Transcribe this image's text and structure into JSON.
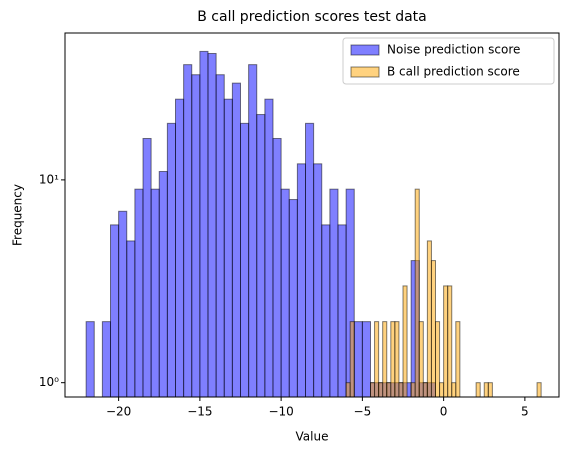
{
  "chart_data": {
    "type": "histogram",
    "title": "B call prediction scores test data",
    "x_label": "Value",
    "y_label": "Frequency",
    "xlim": [
      -23.3,
      7.1
    ],
    "xticks": [
      -20,
      -15,
      -10,
      -5,
      0,
      5
    ],
    "ylim": [
      0.85,
      53
    ],
    "log_y": true,
    "yticks": [
      {
        "value": 1,
        "label": "10⁰"
      },
      {
        "value": 10,
        "label": "10¹"
      }
    ],
    "legend": "upper right",
    "series": [
      {
        "name": "Noise prediction score",
        "color": "#0000ff",
        "bins": [
          -22,
          -21.5,
          -21,
          -20.5,
          -20,
          -19.5,
          -19,
          -18.5,
          -18,
          -17.5,
          -17,
          -16.5,
          -16,
          -15.5,
          -15,
          -14.5,
          -14,
          -13.5,
          -13,
          -12.5,
          -12,
          -11.5,
          -11,
          -10.5,
          -10,
          -9.5,
          -9,
          -8.5,
          -8,
          -7.5,
          -7,
          -6.5,
          -6,
          -5.5,
          -5,
          -4.5,
          -4,
          -3.5,
          -3,
          -2.5,
          -2,
          -1.5,
          -1,
          -0.5,
          0,
          0.5,
          1,
          1.5
        ],
        "values": [
          2,
          0,
          2,
          6,
          7,
          5,
          9,
          16,
          9,
          11,
          19,
          25,
          37,
          33,
          43,
          42,
          33,
          25,
          30,
          19,
          37,
          21,
          25,
          16,
          9,
          8,
          12,
          19,
          12,
          6,
          9,
          6,
          9,
          2,
          2,
          1,
          1,
          1,
          1,
          1,
          4,
          1,
          1,
          0,
          0,
          0,
          0
        ]
      },
      {
        "name": "B call prediction score",
        "color": "#ffa500",
        "bins": [
          -6,
          -5.75,
          -5.5,
          -5.25,
          -5,
          -4.75,
          -4.5,
          -4.25,
          -4,
          -3.75,
          -3.5,
          -3.25,
          -3,
          -2.75,
          -2.5,
          -2.25,
          -2,
          -1.75,
          -1.5,
          -1.25,
          -1,
          -0.75,
          -0.5,
          -0.25,
          0,
          0.25,
          0.5,
          0.75,
          1,
          1.25,
          1.5,
          1.75,
          2,
          2.25,
          2.5,
          2.75,
          3,
          3.25,
          3.5,
          3.75,
          4,
          4.25,
          4.5,
          4.75,
          5,
          5.25,
          5.5,
          5.75,
          6
        ],
        "values": [
          1,
          2,
          0,
          0,
          0,
          0,
          1,
          2,
          1,
          2,
          1,
          2,
          2,
          1,
          3,
          0,
          1,
          9,
          2,
          1,
          5,
          4,
          2,
          1,
          3,
          3,
          1,
          2,
          0,
          0,
          0,
          0,
          1,
          0,
          1,
          1,
          0,
          0,
          0,
          0,
          0,
          0,
          0,
          0,
          0,
          0,
          0,
          1
        ]
      }
    ]
  }
}
